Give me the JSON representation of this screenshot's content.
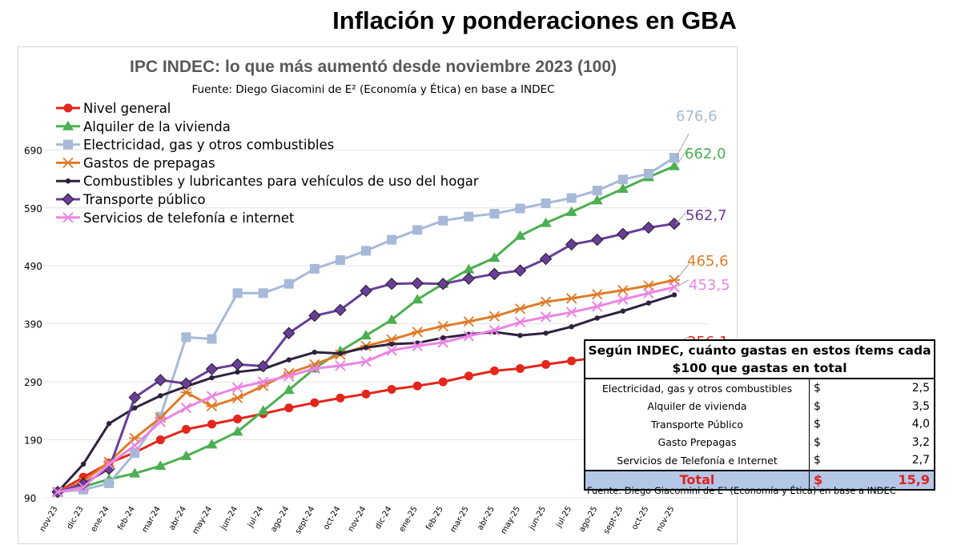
{
  "page_title": "Inflación y ponderaciones en GBA",
  "table": {
    "header": "Según INDEC, cuánto gastas en estos ítems cada $100 que gastas en total",
    "rows": [
      {
        "item": "Electricidad, gas y otros combustibles",
        "currency": "$",
        "value": "2,5"
      },
      {
        "item": "Alquiler de vivienda",
        "currency": "$",
        "value": "3,5"
      },
      {
        "item": "Transporte Público",
        "currency": "$",
        "value": "4,0"
      },
      {
        "item": "Gasto Prepagas",
        "currency": "$",
        "value": "3,2"
      },
      {
        "item": "Servicios de Telefonía e Internet",
        "currency": "$",
        "value": "2,7"
      }
    ],
    "total": {
      "label": "Total",
      "currency": "$",
      "value": "15,9"
    },
    "source": "Fuente: Diego Giacomini de E² (Economía y Ética) en base a INDEC"
  },
  "chart_data": {
    "type": "line",
    "title": "IPC INDEC: lo que más aumentó desde noviembre 2023 (100)",
    "subtitle": "Fuente: Diego Giacomini de E² (Economía y Ética) en base a INDEC",
    "x": [
      "nov-23",
      "dic-23",
      "ene-24",
      "feb-24",
      "mar-24",
      "abr-24",
      "may-24",
      "jun-24",
      "jul-24",
      "ago-24",
      "sept-24",
      "oct-24",
      "nov-24",
      "dic-24",
      "ene-25",
      "feb-25",
      "mar-25",
      "abr-25",
      "may-25",
      "jun-25",
      "jul-25",
      "ago-25",
      "sept-25",
      "oct-25",
      "nov-25"
    ],
    "y_ticks": [
      90,
      190,
      290,
      390,
      490,
      590,
      690
    ],
    "ylim": [
      90,
      725
    ],
    "grid": true,
    "legend_position": "top-left",
    "series": [
      {
        "name": "Nivel general",
        "color": "#e3261c",
        "marker": "circle",
        "end_label": "356,1",
        "values": [
          100,
          125.5,
          150,
          168,
          190,
          208,
          217,
          226,
          235,
          245,
          254,
          262,
          269,
          277,
          283,
          290,
          300,
          309,
          313,
          320,
          326,
          332,
          339,
          346,
          356.1
        ]
      },
      {
        "name": "Alquiler de la vivienda",
        "color": "#4caf50",
        "marker": "triangle",
        "end_label": "662,0",
        "values": [
          100,
          109,
          122,
          132,
          145,
          162,
          182,
          204,
          240,
          276,
          313,
          343,
          370,
          397,
          432,
          459,
          484,
          504,
          542,
          564,
          583,
          603,
          623,
          643,
          662.0
        ]
      },
      {
        "name": "Electricidad, gas y otros combustibles",
        "color": "#a7b9d9",
        "marker": "square",
        "end_label": "676,6",
        "values": [
          100,
          104,
          115,
          167,
          230,
          367,
          364,
          443,
          443,
          459,
          485,
          500,
          516,
          535,
          552,
          568,
          575,
          580,
          589,
          598,
          607,
          620,
          639,
          649,
          676.6
        ]
      },
      {
        "name": "Gastos de prepagas",
        "color": "#e07b28",
        "marker": "asterisk",
        "end_label": "465,6",
        "values": [
          100,
          118,
          152,
          193,
          228,
          272,
          248,
          262,
          283,
          305,
          320,
          337,
          352,
          363,
          376,
          386,
          394,
          403,
          416,
          428,
          434,
          441,
          448,
          456,
          465.6
        ]
      },
      {
        "name": "Combustibles y lubricantes para vehículos de uso del hogar",
        "color": "#2e223f",
        "marker": "dot",
        "end_label": "",
        "values": [
          100,
          148,
          218,
          245,
          266,
          282,
          297,
          307,
          312,
          328,
          341,
          339,
          349,
          355,
          357,
          366,
          372,
          376,
          370,
          374,
          385,
          400,
          412,
          426,
          440
        ]
      },
      {
        "name": "Transporte público",
        "color": "#6a3d9a",
        "marker": "diamond",
        "end_label": "562,7",
        "values": [
          100,
          114,
          140,
          263,
          293,
          287,
          312,
          320,
          317,
          374,
          404,
          414,
          447,
          459,
          460,
          459,
          468,
          476,
          482,
          502,
          527,
          535,
          545,
          556,
          562.7
        ]
      },
      {
        "name": "Servicios de telefonía e internet",
        "color": "#ec84e4",
        "marker": "cross",
        "end_label": "453,5",
        "values": [
          100,
          108,
          148,
          180,
          221,
          245,
          265,
          280,
          290,
          300,
          313,
          318,
          325,
          344,
          352,
          358,
          369,
          379,
          393,
          402,
          410,
          420,
          432,
          443,
          453.5
        ]
      }
    ]
  }
}
